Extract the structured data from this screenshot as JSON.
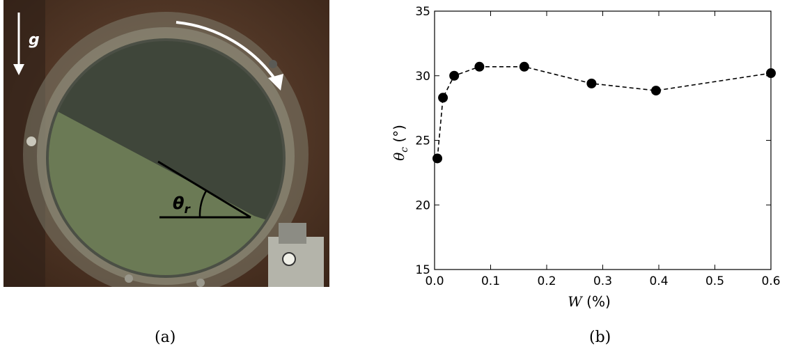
{
  "captions": {
    "left": "(a)",
    "right": "(b)"
  },
  "photo": {
    "gravity_label": "g",
    "angle_label_symbol": "θ",
    "angle_label_subscript": "r",
    "colors": {
      "background": "#5a3b2a",
      "drum_rim": "#8c8a78",
      "granular_light": "#6b7a55",
      "granular_dark": "#3f463a",
      "arrow": "#ffffff"
    }
  },
  "chart_data": {
    "type": "line",
    "xlabel_var": "W",
    "xlabel_unit": " (%)",
    "ylabel_sym": "θ",
    "ylabel_sub": "c",
    "ylabel_unit": " (°)",
    "xlim": [
      0.0,
      0.6
    ],
    "ylim": [
      15,
      35
    ],
    "xticks": [
      "0.0",
      "0.1",
      "0.2",
      "0.3",
      "0.4",
      "0.5",
      "0.6"
    ],
    "yticks": [
      "15",
      "20",
      "25",
      "30",
      "35"
    ],
    "line_style": "dashed",
    "marker": "filled-circle",
    "color": "#000000",
    "grid": false,
    "series": [
      {
        "x": [
          0.005,
          0.015,
          0.035,
          0.08,
          0.16,
          0.28,
          0.395,
          0.6
        ],
        "y": [
          23.6,
          28.3,
          30.0,
          30.7,
          30.7,
          29.4,
          28.85,
          30.2
        ]
      }
    ]
  }
}
